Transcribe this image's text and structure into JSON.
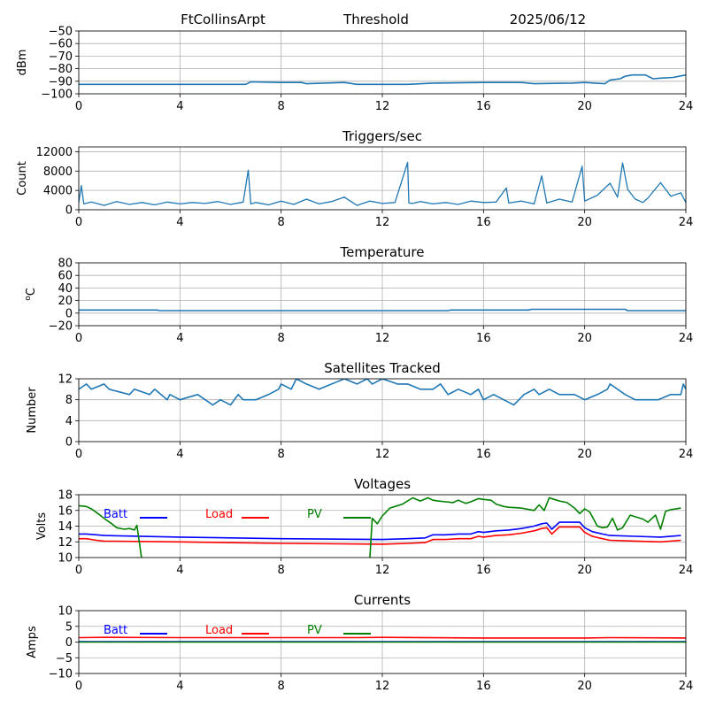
{
  "header": {
    "station": "FtCollinsArpt",
    "mode": "Threshold",
    "date": "2025/06/12"
  },
  "x_ticks": [
    "0",
    "4",
    "8",
    "12",
    "16",
    "20",
    "24"
  ],
  "chart_data": [
    {
      "id": "threshold",
      "type": "line",
      "title": "",
      "ylabel": "dBm",
      "xlim": [
        0,
        24
      ],
      "ylim": [
        -100,
        -50
      ],
      "yticks": [
        -100,
        -90,
        -80,
        -70,
        -60,
        -50
      ],
      "ytick_labels": [
        "−100",
        "−90",
        "−80",
        "−70",
        "−60",
        "−50"
      ],
      "grid": true,
      "series": [
        {
          "color": "#1f77b4",
          "x": [
            0,
            3,
            6.6,
            6.8,
            8,
            8.8,
            9,
            10.5,
            11,
            12,
            13,
            14,
            16,
            17.5,
            18,
            19.5,
            20,
            20.4,
            20.8,
            21,
            21.4,
            21.6,
            21.9,
            22.4,
            22.7,
            23,
            23.5,
            24
          ],
          "y": [
            -92.5,
            -92.5,
            -92.5,
            -90.5,
            -91,
            -91,
            -92,
            -91,
            -92.5,
            -92.5,
            -92.5,
            -91.5,
            -91,
            -91,
            -92,
            -91.5,
            -91,
            -91.5,
            -92,
            -89,
            -88,
            -86,
            -85,
            -85,
            -88,
            -87.5,
            -87,
            -85
          ]
        }
      ]
    },
    {
      "id": "triggers",
      "type": "line",
      "title": "Triggers/sec",
      "ylabel": "Count",
      "xlim": [
        0,
        24
      ],
      "ylim": [
        0,
        13000
      ],
      "yticks": [
        0,
        4000,
        8000,
        12000
      ],
      "ytick_labels": [
        "0",
        "4000",
        "8000",
        "12000"
      ],
      "grid": true,
      "series": [
        {
          "color": "#1f77b4",
          "x": [
            0,
            0.1,
            0.2,
            0.5,
            1,
            1.5,
            2,
            2.5,
            3,
            3.5,
            4,
            4.5,
            5,
            5.5,
            6,
            6.5,
            6.7,
            6.8,
            7,
            7.5,
            8,
            8.5,
            9,
            9.5,
            10,
            10.5,
            11,
            11.5,
            12,
            12.5,
            13,
            13.05,
            13.2,
            13.5,
            14,
            14.5,
            15,
            15.5,
            16,
            16.5,
            16.9,
            17,
            17.5,
            18,
            18.3,
            18.5,
            19,
            19.5,
            19.9,
            20,
            20.5,
            21,
            21.3,
            21.5,
            21.7,
            22,
            22.3,
            22.5,
            23,
            23.4,
            23.8,
            24
          ],
          "y": [
            1500,
            5000,
            1200,
            1600,
            900,
            1700,
            1100,
            1500,
            1000,
            1600,
            1200,
            1500,
            1300,
            1700,
            1100,
            1600,
            8200,
            1200,
            1500,
            1000,
            1800,
            1100,
            2200,
            1200,
            1700,
            2600,
            900,
            1800,
            1300,
            1500,
            9800,
            1400,
            1300,
            1700,
            1200,
            1500,
            1100,
            1800,
            1500,
            1600,
            4500,
            1400,
            1800,
            1200,
            7000,
            1400,
            2200,
            1600,
            9000,
            1800,
            3000,
            5500,
            2600,
            9700,
            4200,
            2200,
            1500,
            2400,
            5600,
            2800,
            3500,
            1500
          ]
        }
      ]
    },
    {
      "id": "temperature",
      "type": "line",
      "title": "Temperature",
      "ylabel": "oC",
      "xlim": [
        0,
        24
      ],
      "ylim": [
        -20,
        80
      ],
      "yticks": [
        -20,
        0,
        20,
        40,
        60,
        80
      ],
      "ytick_labels": [
        "−20",
        "0",
        "20",
        "40",
        "60",
        "80"
      ],
      "grid": true,
      "series": [
        {
          "color": "#1f77b4",
          "x": [
            0,
            3.1,
            3.2,
            14.6,
            14.7,
            17.8,
            17.9,
            21.6,
            21.7,
            24
          ],
          "y": [
            5,
            5,
            4,
            4,
            5,
            5,
            6,
            6,
            4,
            4
          ]
        }
      ]
    },
    {
      "id": "satellites",
      "type": "line",
      "title": "Satellites Tracked",
      "ylabel": "Number",
      "xlim": [
        0,
        24
      ],
      "ylim": [
        0,
        12
      ],
      "yticks": [
        0,
        4,
        8,
        12
      ],
      "ytick_labels": [
        "0",
        "4",
        "8",
        "12"
      ],
      "grid": true,
      "series": [
        {
          "color": "#1f77b4",
          "x": [
            0,
            0.3,
            0.5,
            1,
            1.2,
            2,
            2.2,
            2.8,
            3,
            3.5,
            3.6,
            4,
            4.7,
            5,
            5.3,
            5.6,
            6,
            6.3,
            6.5,
            7,
            7.5,
            7.9,
            8,
            8.4,
            8.6,
            9,
            9.5,
            10,
            10.5,
            11,
            11.4,
            11.6,
            12,
            12.6,
            13,
            13.5,
            14,
            14.3,
            14.6,
            15,
            15.5,
            15.8,
            16,
            16.4,
            16.8,
            17.2,
            17.6,
            18,
            18.2,
            18.6,
            19,
            19.6,
            20,
            20.5,
            20.9,
            21,
            21.6,
            22,
            22.5,
            22.9,
            23.4,
            23.8,
            23.9,
            24
          ],
          "y": [
            10,
            11,
            10,
            11,
            10,
            9,
            10,
            9,
            10,
            8,
            9,
            8,
            9,
            8,
            7,
            8,
            7,
            9,
            8,
            8,
            9,
            10,
            11,
            10,
            12,
            11,
            10,
            11,
            12,
            11,
            12,
            11,
            12,
            11,
            11,
            10,
            10,
            11,
            9,
            10,
            9,
            10,
            8,
            9,
            8,
            7,
            9,
            10,
            9,
            10,
            9,
            9,
            8,
            9,
            10,
            11,
            9,
            8,
            8,
            8,
            9,
            9,
            11,
            10
          ]
        }
      ]
    },
    {
      "id": "voltages",
      "type": "line",
      "title": "Voltages",
      "ylabel": "Volts",
      "xlim": [
        0,
        24
      ],
      "ylim": [
        10,
        18
      ],
      "yticks": [
        10,
        12,
        14,
        16,
        18
      ],
      "ytick_labels": [
        "10",
        "12",
        "14",
        "16",
        "18"
      ],
      "grid": true,
      "legend": {
        "placement": "top-left",
        "inline": true
      },
      "series": [
        {
          "name": "Batt",
          "color": "#0000ff",
          "x": [
            0,
            0.3,
            0.7,
            1,
            4,
            8,
            12,
            13,
            13.7,
            14,
            14.5,
            15,
            15.5,
            15.8,
            16,
            16.5,
            17,
            17.5,
            18,
            18.3,
            18.5,
            18.7,
            19,
            19.5,
            19.8,
            20,
            20.3,
            20.7,
            21,
            22,
            23,
            23.8
          ],
          "y": [
            13,
            13,
            12.9,
            12.8,
            12.6,
            12.4,
            12.3,
            12.4,
            12.5,
            12.9,
            12.9,
            13,
            13,
            13.3,
            13.2,
            13.4,
            13.5,
            13.7,
            14,
            14.3,
            14.4,
            13.6,
            14.5,
            14.5,
            14.5,
            13.8,
            13.3,
            13,
            12.8,
            12.7,
            12.6,
            12.8
          ]
        },
        {
          "name": "Load",
          "color": "#ff0000",
          "x": [
            0,
            0.3,
            0.7,
            1,
            4,
            8,
            12,
            13,
            13.7,
            14,
            14.5,
            15,
            15.5,
            15.8,
            16,
            16.5,
            17,
            17.5,
            18,
            18.3,
            18.5,
            18.7,
            19,
            19.5,
            19.8,
            20,
            20.3,
            20.7,
            21,
            22,
            23,
            23.8
          ],
          "y": [
            12.4,
            12.4,
            12.2,
            12.1,
            12,
            11.8,
            11.7,
            11.8,
            11.9,
            12.3,
            12.3,
            12.4,
            12.4,
            12.7,
            12.6,
            12.8,
            12.9,
            13.1,
            13.4,
            13.7,
            13.8,
            13,
            13.9,
            13.9,
            13.9,
            13.2,
            12.7,
            12.4,
            12.2,
            12.1,
            12,
            12.2
          ]
        },
        {
          "name": "PV",
          "color": "#008000",
          "x": [
            0,
            0.3,
            0.5,
            0.8,
            1,
            1.3,
            1.5,
            1.8,
            2,
            2.2,
            2.3,
            2.5,
            11.5,
            11.6,
            11.8,
            12,
            12.3,
            12.5,
            12.8,
            13.2,
            13.5,
            13.8,
            14,
            14.2,
            14.5,
            14.8,
            15,
            15.3,
            15.5,
            15.8,
            16,
            16.3,
            16.5,
            16.8,
            17,
            17.5,
            18,
            18.2,
            18.4,
            18.6,
            18.8,
            19,
            19.3,
            19.6,
            19.8,
            20,
            20.2,
            20.5,
            20.7,
            20.9,
            21.1,
            21.3,
            21.5,
            21.8,
            22,
            22.3,
            22.5,
            22.8,
            23,
            23.2,
            23.4,
            23.8
          ],
          "y": [
            16.6,
            16.5,
            16.2,
            15.5,
            15,
            14.3,
            13.8,
            13.6,
            13.7,
            13.5,
            14.1,
            9.5,
            9.5,
            15,
            14.3,
            15.3,
            16.3,
            16.5,
            16.8,
            17.6,
            17.2,
            17.6,
            17.3,
            17.2,
            17.1,
            17,
            17.3,
            16.9,
            17.1,
            17.5,
            17.4,
            17.3,
            16.8,
            16.5,
            16.4,
            16.3,
            16,
            16.7,
            16,
            17.6,
            17.4,
            17.2,
            17,
            16.3,
            15.6,
            16.2,
            15.8,
            14,
            13.8,
            13.9,
            15,
            13.5,
            13.8,
            15.4,
            15.2,
            14.9,
            14.5,
            15.4,
            13.6,
            15.9,
            16.1,
            16.3
          ]
        }
      ]
    },
    {
      "id": "currents",
      "type": "line",
      "title": "Currents",
      "ylabel": "Amps",
      "xlim": [
        0,
        24
      ],
      "ylim": [
        -10,
        10
      ],
      "yticks": [
        -10,
        -5,
        0,
        5,
        10
      ],
      "ytick_labels": [
        "−10",
        "−5",
        "0",
        "5",
        "10"
      ],
      "grid": true,
      "legend": {
        "placement": "top-left",
        "inline": true
      },
      "series": [
        {
          "name": "Batt",
          "color": "#0000ff",
          "x": [
            0,
            24
          ],
          "y": [
            0.1,
            0.1
          ]
        },
        {
          "name": "Load",
          "color": "#ff0000",
          "x": [
            0,
            1,
            4,
            8,
            11,
            12,
            16,
            20,
            21,
            24
          ],
          "y": [
            1.4,
            1.5,
            1.4,
            1.4,
            1.4,
            1.5,
            1.3,
            1.3,
            1.4,
            1.3
          ]
        },
        {
          "name": "PV",
          "color": "#008000",
          "x": [
            0,
            24
          ],
          "y": [
            0,
            0
          ]
        }
      ]
    }
  ]
}
